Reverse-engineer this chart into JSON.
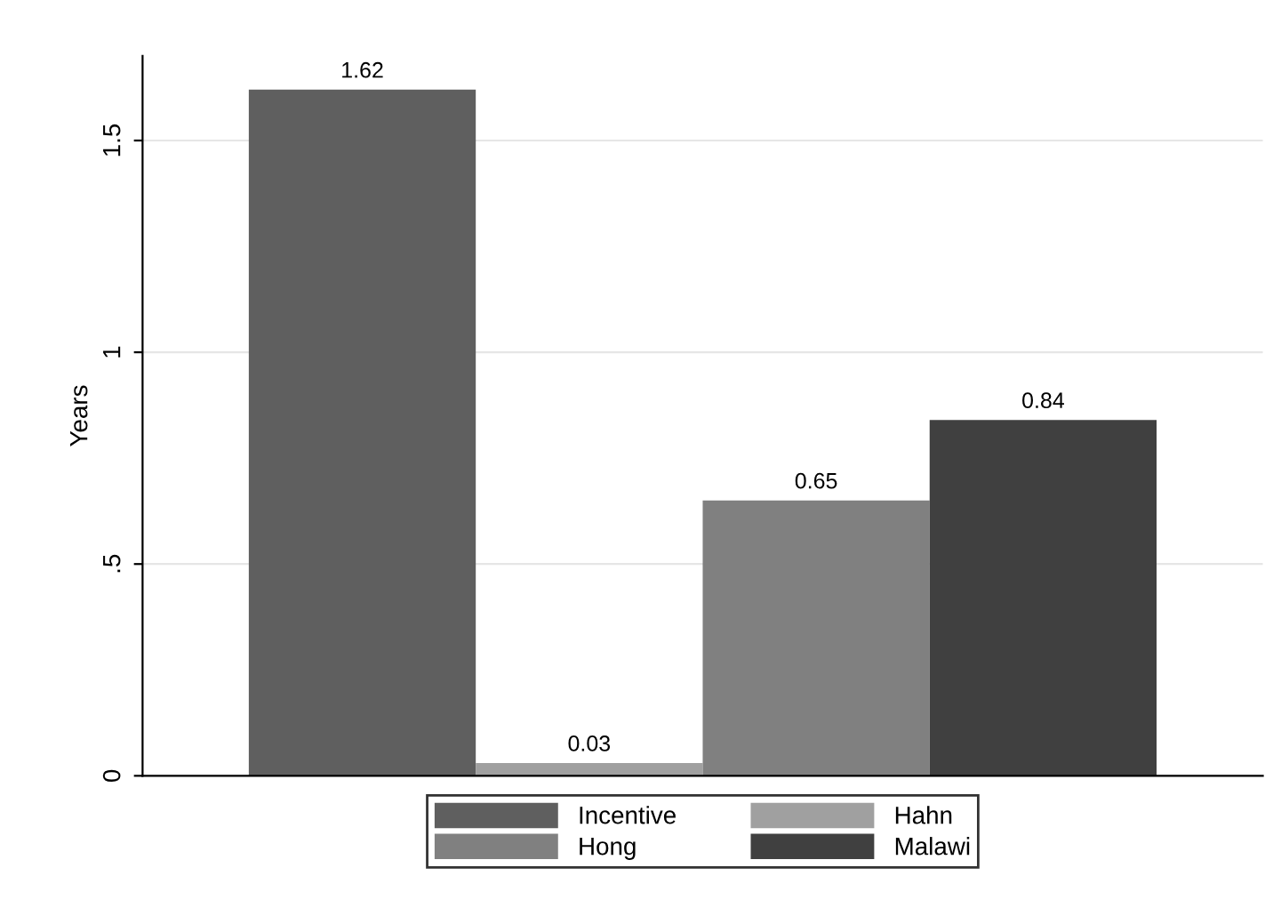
{
  "chart_data": {
    "type": "bar",
    "ylabel": "Years",
    "categories": [
      null
    ],
    "series": [
      {
        "name": "Incentive",
        "color": "#5f5f5f",
        "values": [
          1.62
        ]
      },
      {
        "name": "Hahn",
        "color": "#a0a0a0",
        "values": [
          0.03
        ]
      },
      {
        "name": "Hong",
        "color": "#808080",
        "values": [
          0.65
        ]
      },
      {
        "name": "Malawi",
        "color": "#404040",
        "values": [
          0.84
        ]
      }
    ],
    "ylim": [
      0,
      1.7
    ],
    "yticks": [
      0,
      {
        "value": 0.5,
        "label": ".5"
      },
      1,
      1.5
    ],
    "grid": "y",
    "legend": "bottom",
    "data_labels": true
  }
}
